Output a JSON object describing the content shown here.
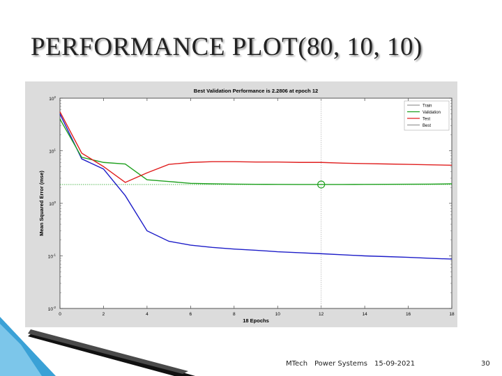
{
  "slide": {
    "title": "PERFORMANCE PLOT(80, 10, 10)",
    "footer_course": "MTech",
    "footer_subject": "Power Systems",
    "footer_date": "15-09-2021",
    "footer_page": "30"
  },
  "chart_data": {
    "type": "line",
    "title": "Best Validation Performance is 2.2806 at epoch 12",
    "xlabel": "18 Epochs",
    "ylabel": "Mean Squared Error  (mse)",
    "xlim": [
      0,
      18
    ],
    "ylim": [
      0.01,
      100
    ],
    "yscale": "log",
    "grid": false,
    "legend_placement": "top-right",
    "x_ticks": [
      "0",
      "2",
      "4",
      "6",
      "8",
      "10",
      "12",
      "14",
      "16",
      "18"
    ],
    "x_tick_values": [
      0,
      2,
      4,
      6,
      8,
      10,
      12,
      14,
      16,
      18
    ],
    "y_tick_values": [
      100,
      10,
      1,
      0.1,
      0.01
    ],
    "y_tick_labels": [
      {
        "base": "10",
        "exp": "2"
      },
      {
        "base": "10",
        "exp": "1"
      },
      {
        "base": "10",
        "exp": "0"
      },
      {
        "base": "10",
        "exp": "-1"
      },
      {
        "base": "10",
        "exp": "-2"
      }
    ],
    "x": [
      0,
      1,
      2,
      3,
      4,
      5,
      6,
      7,
      8,
      9,
      10,
      11,
      12,
      13,
      14,
      15,
      16,
      17,
      18
    ],
    "series": [
      {
        "name": "Train",
        "color": "#1c1cc8",
        "values": [
          50,
          7.0,
          4.5,
          1.4,
          0.3,
          0.19,
          0.16,
          0.145,
          0.135,
          0.128,
          0.12,
          0.115,
          0.11,
          0.105,
          0.1,
          0.097,
          0.094,
          0.09,
          0.087
        ]
      },
      {
        "name": "Validation",
        "color": "#1ea01e",
        "values": [
          40,
          7.5,
          6.0,
          5.6,
          2.8,
          2.6,
          2.4,
          2.35,
          2.32,
          2.3,
          2.29,
          2.285,
          2.2806,
          2.285,
          2.29,
          2.3,
          2.31,
          2.32,
          2.35
        ]
      },
      {
        "name": "Test",
        "color": "#e01e1e",
        "values": [
          55,
          9.0,
          5.0,
          2.5,
          3.8,
          5.5,
          6.0,
          6.2,
          6.2,
          6.1,
          6.1,
          6.0,
          6.0,
          5.8,
          5.7,
          5.6,
          5.5,
          5.4,
          5.3
        ]
      }
    ],
    "best": {
      "name": "Best",
      "x": 12,
      "y": 2.2806,
      "color": "#1ea01e"
    },
    "goal_line": {
      "y": 2.2806,
      "color": "#1ea01e"
    },
    "legend": [
      {
        "label": "Train",
        "color": "#999999"
      },
      {
        "label": "Validation",
        "color": "#1ea01e"
      },
      {
        "label": "Test",
        "color": "#e01e1e"
      },
      {
        "label": "Best",
        "color": "#999999"
      }
    ]
  }
}
